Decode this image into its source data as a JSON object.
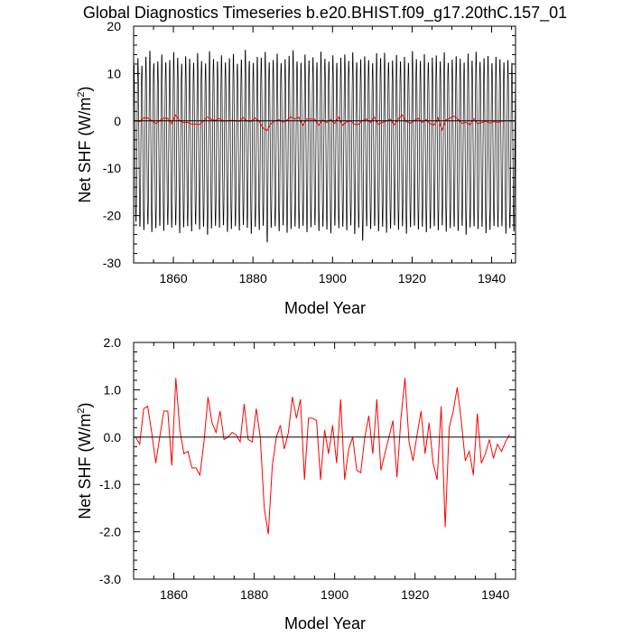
{
  "title": "Global Diagnostics Timeseries b.e20.BHIST.f09_g17.20thC.157_01",
  "chart_data": [
    {
      "type": "line",
      "xlabel": "Model Year",
      "ylabel_main": "Net SHF (W/m",
      "ylabel_sup": "2",
      "ylabel_close": ")",
      "xlim": [
        1850,
        1946
      ],
      "ylim": [
        -30,
        20
      ],
      "x_ticks": [
        1860,
        1880,
        1900,
        1920,
        1940
      ],
      "x_tick_labels": [
        "1860",
        "1880",
        "1900",
        "1920",
        "1940"
      ],
      "y_ticks": [
        -30,
        -20,
        -10,
        0,
        10,
        20
      ],
      "y_tick_labels": [
        "-30",
        "-20",
        "-10",
        "0",
        "10",
        "20"
      ],
      "reference_line": 0,
      "series": [
        {
          "color": "#000000",
          "monthly_cycle": true,
          "start_year": 1850,
          "end_year": 1946,
          "annual_max": [
            12.3,
            13.8,
            12.2,
            14.1,
            15.4,
            12.7,
            13.1,
            14.6,
            12.9,
            13.4,
            15.1,
            13.9,
            12.6,
            14.2,
            13.7,
            12.8,
            14.9,
            13.2,
            12.7,
            15.3,
            13.6,
            13.1,
            14.4,
            12.9,
            13.8,
            14.7,
            12.6,
            13.5,
            15.6,
            13.2,
            12.8,
            14.1,
            13.9,
            15.2,
            12.9,
            13.4,
            14.8,
            12.7,
            13.6,
            14.3,
            15.5,
            13.1,
            12.8,
            14.6,
            13.3,
            14.0,
            12.9,
            15.2,
            13.7,
            13.1,
            14.4,
            12.8,
            13.9,
            14.6,
            13.2,
            15.1,
            12.9,
            13.6,
            14.2,
            13.4,
            12.7,
            14.9,
            13.8,
            15.0,
            12.9,
            13.3,
            14.5,
            13.1,
            14.1,
            12.8,
            15.3,
            13.6,
            13.2,
            14.7,
            12.9,
            13.9,
            14.4,
            13.1,
            15.1,
            12.8,
            13.5,
            14.2,
            13.7,
            12.9,
            14.8,
            13.3,
            15.2,
            13.0,
            13.8,
            14.3,
            12.7,
            14.1,
            13.6,
            12.9,
            13.4,
            12.8
          ],
          "annual_min": [
            -21.8,
            -22.9,
            -23.6,
            -22.4,
            -24.1,
            -23.2,
            -22.7,
            -23.8,
            -22.5,
            -23.1,
            -22.6,
            -24.3,
            -23.0,
            -22.8,
            -23.9,
            -22.4,
            -23.5,
            -22.9,
            -24.6,
            -23.3,
            -22.7,
            -23.1,
            -22.6,
            -24.0,
            -23.4,
            -22.8,
            -23.7,
            -22.5,
            -23.2,
            -24.4,
            -22.9,
            -23.6,
            -22.7,
            -26.3,
            -23.1,
            -22.8,
            -23.9,
            -22.6,
            -24.2,
            -23.4,
            -22.9,
            -23.3,
            -22.7,
            -24.1,
            -23.0,
            -22.6,
            -23.8,
            -22.9,
            -23.5,
            -24.3,
            -22.7,
            -23.2,
            -22.9,
            -23.7,
            -22.6,
            -24.5,
            -23.1,
            -25.9,
            -22.8,
            -23.4,
            -22.7,
            -23.9,
            -22.9,
            -24.2,
            -23.3,
            -22.6,
            -23.6,
            -22.8,
            -24.4,
            -23.0,
            -22.7,
            -23.5,
            -22.9,
            -24.1,
            -23.3,
            -22.8,
            -23.7,
            -22.6,
            -24.0,
            -23.2,
            -22.9,
            -23.8,
            -22.7,
            -24.6,
            -23.1,
            -22.8,
            -23.4,
            -22.9,
            -24.3,
            -23.6,
            -22.7,
            -23.0,
            -22.8,
            -24.4,
            -23.2,
            -23.9
          ]
        },
        {
          "color": "#ff0000",
          "x_start": 1850.5,
          "x_step": 1,
          "values": [
            0.0,
            -0.15,
            0.6,
            0.65,
            0.1,
            -0.55,
            0.0,
            0.55,
            0.55,
            -0.6,
            1.25,
            0.15,
            -0.35,
            -0.3,
            -0.65,
            -0.65,
            -0.8,
            -0.1,
            0.85,
            0.3,
            0.1,
            0.55,
            -0.05,
            0.0,
            0.1,
            0.05,
            -0.1,
            0.7,
            -0.05,
            -0.1,
            0.6,
            0.0,
            -1.5,
            -2.05,
            -0.6,
            0.0,
            0.25,
            -0.25,
            0.1,
            0.85,
            0.4,
            0.8,
            -0.9,
            0.4,
            0.4,
            0.35,
            -0.9,
            0.15,
            -0.35,
            0.25,
            -0.55,
            0.8,
            -0.9,
            -0.25,
            0.0,
            -0.7,
            -0.75,
            0.0,
            0.45,
            -0.35,
            0.8,
            -0.7,
            -0.35,
            0.0,
            0.35,
            -0.85,
            0.4,
            1.25,
            -0.1,
            -0.5,
            0.05,
            0.55,
            -0.35,
            0.3,
            -0.55,
            -0.9,
            0.65,
            -1.9,
            0.2,
            0.55,
            1.05,
            0.35,
            -0.5,
            -0.3,
            -0.8,
            0.5,
            -0.55,
            -0.35,
            -0.05,
            -0.45,
            -0.15,
            -0.3,
            -0.1,
            0.05
          ]
        }
      ]
    },
    {
      "type": "line",
      "xlabel": "Model Year",
      "ylabel_main": "Net SHF (W/m",
      "ylabel_sup": "2",
      "ylabel_close": ")",
      "xlim": [
        1850,
        1945
      ],
      "ylim": [
        -3.0,
        2.0
      ],
      "x_ticks": [
        1860,
        1880,
        1900,
        1920,
        1940
      ],
      "x_tick_labels": [
        "1860",
        "1880",
        "1900",
        "1920",
        "1940"
      ],
      "y_ticks": [
        -3.0,
        -2.0,
        -1.0,
        0.0,
        1.0,
        2.0
      ],
      "y_tick_labels": [
        "-3.0",
        "-2.0",
        "-1.0",
        "0.0",
        "1.0",
        "2.0"
      ],
      "reference_line": 0,
      "series": [
        {
          "color": "#ff0000",
          "x_start": 1850.5,
          "x_step": 1,
          "values": [
            0.0,
            -0.15,
            0.6,
            0.65,
            0.1,
            -0.55,
            0.0,
            0.55,
            0.55,
            -0.6,
            1.25,
            0.15,
            -0.35,
            -0.3,
            -0.65,
            -0.65,
            -0.8,
            -0.1,
            0.85,
            0.3,
            0.1,
            0.55,
            -0.05,
            0.0,
            0.1,
            0.05,
            -0.1,
            0.7,
            -0.05,
            -0.1,
            0.6,
            0.0,
            -1.5,
            -2.05,
            -0.6,
            0.0,
            0.25,
            -0.25,
            0.1,
            0.85,
            0.4,
            0.8,
            -0.9,
            0.4,
            0.4,
            0.35,
            -0.9,
            0.15,
            -0.35,
            0.25,
            -0.55,
            0.8,
            -0.9,
            -0.25,
            0.0,
            -0.7,
            -0.75,
            0.0,
            0.45,
            -0.35,
            0.8,
            -0.7,
            -0.35,
            0.0,
            0.35,
            -0.85,
            0.4,
            1.25,
            -0.1,
            -0.5,
            0.05,
            0.55,
            -0.35,
            0.3,
            -0.55,
            -0.9,
            0.65,
            -1.9,
            0.2,
            0.55,
            1.05,
            0.35,
            -0.5,
            -0.3,
            -0.8,
            0.5,
            -0.55,
            -0.35,
            -0.05,
            -0.45,
            -0.15,
            -0.3,
            -0.1,
            0.05
          ]
        }
      ]
    }
  ]
}
